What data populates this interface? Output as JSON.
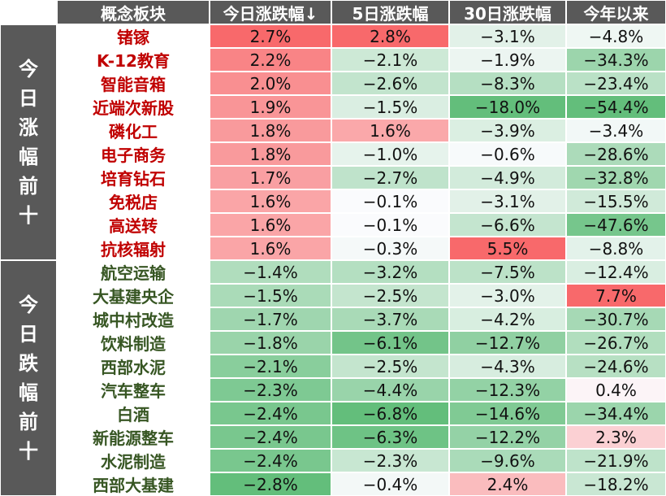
{
  "colors": {
    "header_bg": "#595959",
    "header_text": "#ffffff",
    "gainer_name": "#c00000",
    "loser_name": "#375623",
    "positive_strong": "#f8696b",
    "negative_strong": "#63be7b",
    "neutral": "#fcfcff"
  },
  "header": {
    "col0": "",
    "col1": "概念板块",
    "col2": "今日涨跌幅↓",
    "col3": "5日涨跌幅",
    "col4": "30日涨跌幅",
    "col5": "今年以来"
  },
  "groups": {
    "gainers": {
      "label": "今日涨幅前十",
      "chars": [
        "今",
        "日",
        "涨",
        "幅",
        "前",
        "十"
      ]
    },
    "losers": {
      "label": "今日跌幅前十",
      "chars": [
        "今",
        "日",
        "跌",
        "幅",
        "前",
        "十"
      ]
    }
  },
  "chart_data": {
    "type": "table",
    "columns": [
      "概念板块",
      "今日涨跌幅↓",
      "5日涨跌幅",
      "30日涨跌幅",
      "今年以来"
    ],
    "rows": [
      {
        "group": "今日涨幅前十",
        "name": "锗镓",
        "today": 2.7,
        "d5": 2.8,
        "d30": -3.1,
        "ytd": -4.8,
        "text": [
          "2.7%",
          "2.8%",
          "−3.1%",
          "−4.8%"
        ]
      },
      {
        "group": "今日涨幅前十",
        "name": "K-12教育",
        "today": 2.2,
        "d5": -2.1,
        "d30": -1.9,
        "ytd": -34.3,
        "text": [
          "2.2%",
          "−2.1%",
          "−1.9%",
          "−34.3%"
        ]
      },
      {
        "group": "今日涨幅前十",
        "name": "智能音箱",
        "today": 2.0,
        "d5": -2.6,
        "d30": -8.3,
        "ytd": -23.4,
        "text": [
          "2.0%",
          "−2.6%",
          "−8.3%",
          "−23.4%"
        ]
      },
      {
        "group": "今日涨幅前十",
        "name": "近端次新股",
        "today": 1.9,
        "d5": -1.5,
        "d30": -18.0,
        "ytd": -54.4,
        "text": [
          "1.9%",
          "−1.5%",
          "−18.0%",
          "−54.4%"
        ]
      },
      {
        "group": "今日涨幅前十",
        "name": "磷化工",
        "today": 1.8,
        "d5": 1.6,
        "d30": -3.9,
        "ytd": -3.4,
        "text": [
          "1.8%",
          "1.6%",
          "−3.9%",
          "−3.4%"
        ]
      },
      {
        "group": "今日涨幅前十",
        "name": "电子商务",
        "today": 1.8,
        "d5": -1.0,
        "d30": -0.6,
        "ytd": -28.6,
        "text": [
          "1.8%",
          "−1.0%",
          "−0.6%",
          "−28.6%"
        ]
      },
      {
        "group": "今日涨幅前十",
        "name": "培育钻石",
        "today": 1.7,
        "d5": -2.7,
        "d30": -4.9,
        "ytd": -32.8,
        "text": [
          "1.7%",
          "−2.7%",
          "−4.9%",
          "−32.8%"
        ]
      },
      {
        "group": "今日涨幅前十",
        "name": "免税店",
        "today": 1.6,
        "d5": -0.1,
        "d30": -3.1,
        "ytd": -15.5,
        "text": [
          "1.6%",
          "−0.1%",
          "−3.1%",
          "−15.5%"
        ]
      },
      {
        "group": "今日涨幅前十",
        "name": "高送转",
        "today": 1.6,
        "d5": -0.1,
        "d30": -6.6,
        "ytd": -47.6,
        "text": [
          "1.6%",
          "−0.1%",
          "−6.6%",
          "−47.6%"
        ]
      },
      {
        "group": "今日涨幅前十",
        "name": "抗核辐射",
        "today": 1.6,
        "d5": -0.3,
        "d30": 5.5,
        "ytd": -8.8,
        "text": [
          "1.6%",
          "−0.3%",
          "5.5%",
          "−8.8%"
        ]
      },
      {
        "group": "今日跌幅前十",
        "name": "航空运输",
        "today": -1.4,
        "d5": -3.2,
        "d30": -7.5,
        "ytd": -12.4,
        "text": [
          "−1.4%",
          "−3.2%",
          "−7.5%",
          "−12.4%"
        ]
      },
      {
        "group": "今日跌幅前十",
        "name": "大基建央企",
        "today": -1.5,
        "d5": -2.5,
        "d30": -3.0,
        "ytd": 7.7,
        "text": [
          "−1.5%",
          "−2.5%",
          "−3.0%",
          "7.7%"
        ]
      },
      {
        "group": "今日跌幅前十",
        "name": "城中村改造",
        "today": -1.7,
        "d5": -3.7,
        "d30": -4.2,
        "ytd": -30.7,
        "text": [
          "−1.7%",
          "−3.7%",
          "−4.2%",
          "−30.7%"
        ]
      },
      {
        "group": "今日跌幅前十",
        "name": "饮料制造",
        "today": -1.8,
        "d5": -6.1,
        "d30": -12.7,
        "ytd": -26.7,
        "text": [
          "−1.8%",
          "−6.1%",
          "−12.7%",
          "−26.7%"
        ]
      },
      {
        "group": "今日跌幅前十",
        "name": "西部水泥",
        "today": -2.1,
        "d5": -2.5,
        "d30": -4.3,
        "ytd": -24.6,
        "text": [
          "−2.1%",
          "−2.5%",
          "−4.3%",
          "−24.6%"
        ]
      },
      {
        "group": "今日跌幅前十",
        "name": "汽车整车",
        "today": -2.3,
        "d5": -4.4,
        "d30": -12.3,
        "ytd": 0.4,
        "text": [
          "−2.3%",
          "−4.4%",
          "−12.3%",
          "0.4%"
        ]
      },
      {
        "group": "今日跌幅前十",
        "name": "白酒",
        "today": -2.4,
        "d5": -6.8,
        "d30": -14.6,
        "ytd": -34.4,
        "text": [
          "−2.4%",
          "−6.8%",
          "−14.6%",
          "−34.4%"
        ]
      },
      {
        "group": "今日跌幅前十",
        "name": "新能源整车",
        "today": -2.4,
        "d5": -6.3,
        "d30": -12.2,
        "ytd": 2.3,
        "text": [
          "−2.4%",
          "−6.3%",
          "−12.2%",
          "2.3%"
        ]
      },
      {
        "group": "今日跌幅前十",
        "name": "水泥制造",
        "today": -2.4,
        "d5": -2.3,
        "d30": -9.6,
        "ytd": -21.9,
        "text": [
          "−2.4%",
          "−2.3%",
          "−9.6%",
          "−21.9%"
        ]
      },
      {
        "group": "今日跌幅前十",
        "name": "西部大基建",
        "today": -2.8,
        "d5": -0.4,
        "d30": 2.4,
        "ytd": -18.2,
        "text": [
          "−2.8%",
          "−0.4%",
          "2.4%",
          "−18.2%"
        ]
      }
    ]
  }
}
